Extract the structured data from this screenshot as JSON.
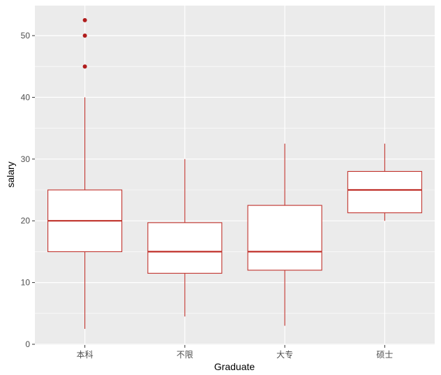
{
  "chart_data": {
    "type": "boxplot",
    "title": "",
    "xlabel": "Graduate",
    "ylabel": "salary",
    "ylim": [
      0,
      55
    ],
    "yticks": [
      0,
      10,
      20,
      30,
      40,
      50
    ],
    "grid": true,
    "legend": null,
    "categories": [
      "本科",
      "不限",
      "大专",
      "硕士"
    ],
    "series": [
      {
        "category": "本科",
        "whisker_low": 2.5,
        "q1": 15,
        "median": 20,
        "q3": 25,
        "whisker_high": 40,
        "outliers": [
          45,
          50,
          52.5
        ]
      },
      {
        "category": "不限",
        "whisker_low": 4.5,
        "q1": 11.5,
        "median": 15,
        "q3": 19.7,
        "whisker_high": 30,
        "outliers": []
      },
      {
        "category": "大专",
        "whisker_low": 3,
        "q1": 12,
        "median": 15,
        "q3": 22.5,
        "whisker_high": 32.5,
        "outliers": []
      },
      {
        "category": "硕士",
        "whisker_low": 20,
        "q1": 21.3,
        "median": 25,
        "q3": 28,
        "whisker_high": 32.5,
        "outliers": []
      }
    ],
    "colors": {
      "box_line": "#c0302a",
      "outlier": "#b01c1c",
      "box_fill": "#ffffff",
      "panel_bg": "#ebebeb",
      "grid": "#ffffff"
    }
  }
}
